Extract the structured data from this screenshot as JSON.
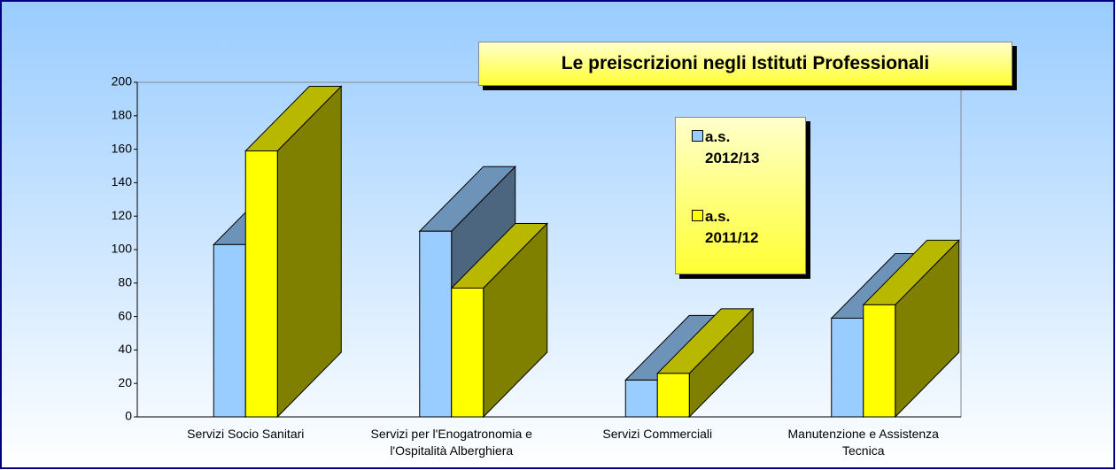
{
  "chart_data": {
    "type": "bar3d",
    "title": "Le preiscrizioni negli Istituti Professionali",
    "categories": [
      "Servizi Socio Sanitari",
      "Servizi per l'Enogatronomia e l'Ospitalità Alberghiera",
      "Servizi Commerciali",
      "Manutenzione e Assistenza Tecnica"
    ],
    "series": [
      {
        "name": "a.s. 2012/13",
        "color": "#99ccff",
        "values": [
          103,
          111,
          22,
          59
        ]
      },
      {
        "name": "a.s. 2011/12",
        "color": "#ffff00",
        "values": [
          159,
          77,
          26,
          67
        ]
      }
    ],
    "ylim": [
      0,
      200
    ],
    "yticks": [
      0,
      20,
      40,
      60,
      80,
      100,
      120,
      140,
      160,
      180,
      200
    ]
  }
}
